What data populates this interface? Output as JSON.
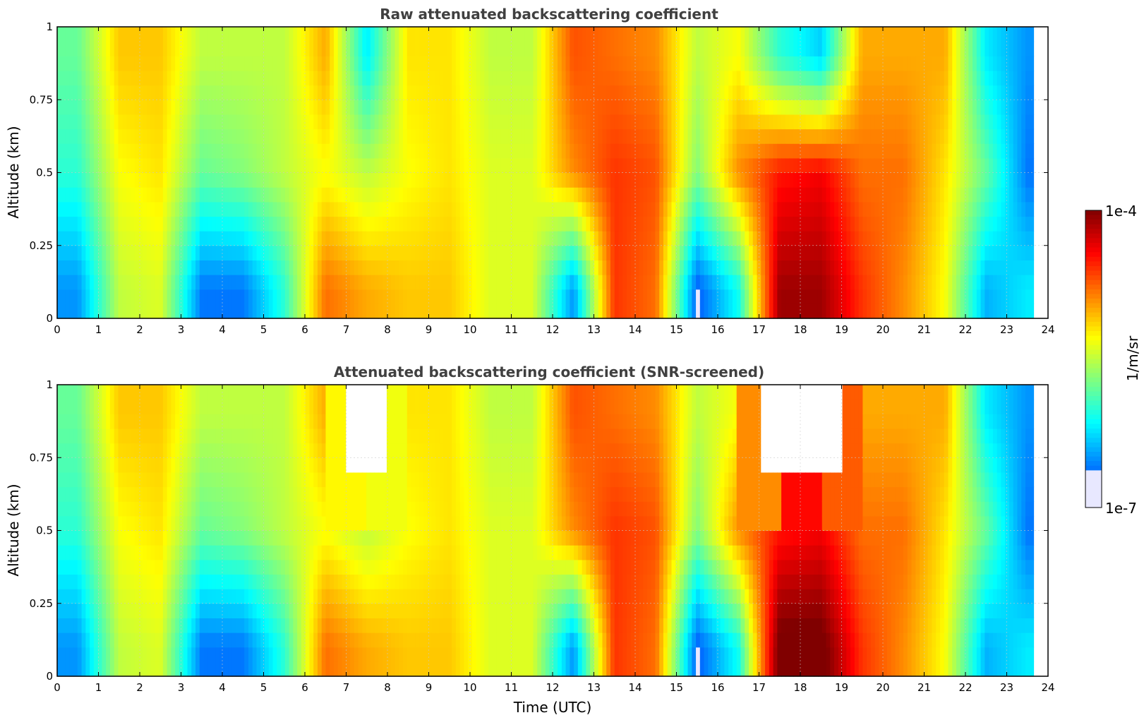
{
  "colors": {
    "frame": "#000000",
    "grid": "#c8c8c8",
    "title": "#404040",
    "colormap": "jet",
    "low_value_color": "#e8e8ff",
    "masked_color": "#ffffff"
  },
  "chart_data": [
    {
      "type": "heatmap",
      "title": "Raw attenuated backscattering coefficient",
      "xlabel": "",
      "ylabel": "Altitude (km)",
      "xlim": [
        0,
        24
      ],
      "ylim": [
        0,
        1
      ],
      "x_ticks": [
        "0",
        "1",
        "2",
        "3",
        "4",
        "5",
        "6",
        "7",
        "8",
        "9",
        "10",
        "11",
        "12",
        "13",
        "14",
        "15",
        "16",
        "17",
        "18",
        "19",
        "20",
        "21",
        "22",
        "23",
        "24"
      ],
      "y_ticks": [
        "0",
        "0.25",
        "0.5",
        "0.75",
        "1"
      ],
      "data_extent_x": [
        0,
        23.65
      ],
      "grid": true,
      "z_scale": "log",
      "screened": false,
      "coarse_log10_backscatter": {
        "time_utc": [
          0.5,
          1.5,
          2.5,
          3.5,
          4.5,
          5.5,
          6.5,
          7.5,
          8.5,
          9.5,
          10.5,
          11.5,
          12.5,
          13.5,
          14.5,
          15.5,
          16.5,
          17.5,
          18.5,
          19.5,
          20.5,
          21.5,
          22.5,
          23.5
        ],
        "altitude_km": [
          0.1,
          0.5,
          0.9
        ],
        "values": [
          [
            -6.5,
            -5.5,
            -5.4,
            -6.6,
            -6.6,
            -6.0,
            -4.8,
            -5.0,
            -5.1,
            -5.1,
            -5.4,
            -5.4,
            -6.5,
            -4.6,
            -4.8,
            -6.7,
            -6.1,
            -4.1,
            -4.1,
            -4.6,
            -4.9,
            -5.3,
            -6.4,
            -6.2
          ],
          [
            -6.0,
            -5.3,
            -5.2,
            -5.8,
            -5.7,
            -5.5,
            -5.3,
            -5.5,
            -5.3,
            -5.2,
            -5.4,
            -5.4,
            -4.9,
            -4.6,
            -4.7,
            -5.7,
            -4.9,
            -4.5,
            -4.4,
            -4.8,
            -4.8,
            -5.2,
            -5.8,
            -6.6
          ],
          [
            -5.8,
            -5.1,
            -5.1,
            -5.5,
            -5.5,
            -5.5,
            -5.0,
            -6.2,
            -5.2,
            -5.2,
            -5.5,
            -5.5,
            -4.7,
            -4.8,
            -4.9,
            -5.5,
            -5.3,
            -6.0,
            -6.3,
            -5.0,
            -5.0,
            -5.0,
            -6.2,
            -6.5
          ]
        ]
      }
    },
    {
      "type": "heatmap",
      "title": "Attenuated backscattering coefficient (SNR-screened)",
      "xlabel": "Time (UTC)",
      "ylabel": "Altitude (km)",
      "xlim": [
        0,
        24
      ],
      "ylim": [
        0,
        1
      ],
      "x_ticks": [
        "0",
        "1",
        "2",
        "3",
        "4",
        "5",
        "6",
        "7",
        "8",
        "9",
        "10",
        "11",
        "12",
        "13",
        "14",
        "15",
        "16",
        "17",
        "18",
        "19",
        "20",
        "21",
        "22",
        "23",
        "24"
      ],
      "y_ticks": [
        "0",
        "0.25",
        "0.5",
        "0.75",
        "1"
      ],
      "data_extent_x": [
        0,
        23.65
      ],
      "grid": true,
      "z_scale": "log",
      "screened": true,
      "coarse_log10_backscatter": {
        "time_utc": [
          0.5,
          1.5,
          2.5,
          3.5,
          4.5,
          5.5,
          6.5,
          7.5,
          8.5,
          9.5,
          10.5,
          11.5,
          12.5,
          13.5,
          14.5,
          15.5,
          16.5,
          17.5,
          18.5,
          19.5,
          20.5,
          21.5,
          22.5,
          23.5
        ],
        "altitude_km": [
          0.1,
          0.5,
          0.9
        ],
        "values": [
          [
            -6.5,
            -5.5,
            -5.4,
            -6.6,
            -6.6,
            -6.0,
            -4.8,
            -5.0,
            -5.1,
            -5.1,
            -5.4,
            -5.4,
            -6.5,
            -4.6,
            -4.8,
            -6.7,
            -6.1,
            -3.9,
            -3.9,
            -4.6,
            -4.9,
            -5.3,
            -6.4,
            -6.2
          ],
          [
            -6.0,
            -5.3,
            -5.2,
            -5.8,
            -5.7,
            -5.5,
            -5.3,
            -5.5,
            -5.3,
            -5.2,
            -5.4,
            -5.4,
            -4.9,
            -4.6,
            -4.7,
            -5.7,
            -4.9,
            -4.5,
            -4.4,
            -4.8,
            -4.8,
            -5.2,
            -5.8,
            -6.6
          ],
          [
            -5.8,
            -5.1,
            -5.1,
            -5.5,
            -5.5,
            -5.5,
            -5.0,
            null,
            -5.2,
            -5.2,
            -5.5,
            -5.5,
            -4.7,
            -4.8,
            -4.9,
            -5.5,
            -5.3,
            null,
            null,
            -5.0,
            -5.0,
            -5.0,
            -6.2,
            -6.5
          ]
        ]
      }
    }
  ],
  "colorbar": {
    "label": "1/m/sr",
    "max_label": "1e-4",
    "min_label": "1e-7",
    "range_log10": [
      -7,
      -4
    ]
  }
}
